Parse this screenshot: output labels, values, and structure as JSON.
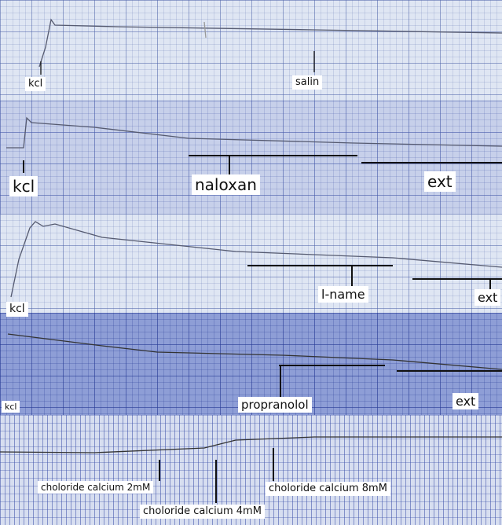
{
  "panels": [
    {
      "labels": [
        "kcl",
        "salin"
      ]
    },
    {
      "labels": [
        "kcl",
        "naloxan",
        "ext"
      ]
    },
    {
      "labels": [
        "kcl",
        "l-name",
        "ext"
      ]
    },
    {
      "labels": [
        "kcl",
        "propranolol",
        "ext"
      ]
    },
    {
      "labels": [
        "choloride calcium 2mM",
        "choloride calcium 4mM",
        "choloride calcium 8mM"
      ]
    }
  ]
}
